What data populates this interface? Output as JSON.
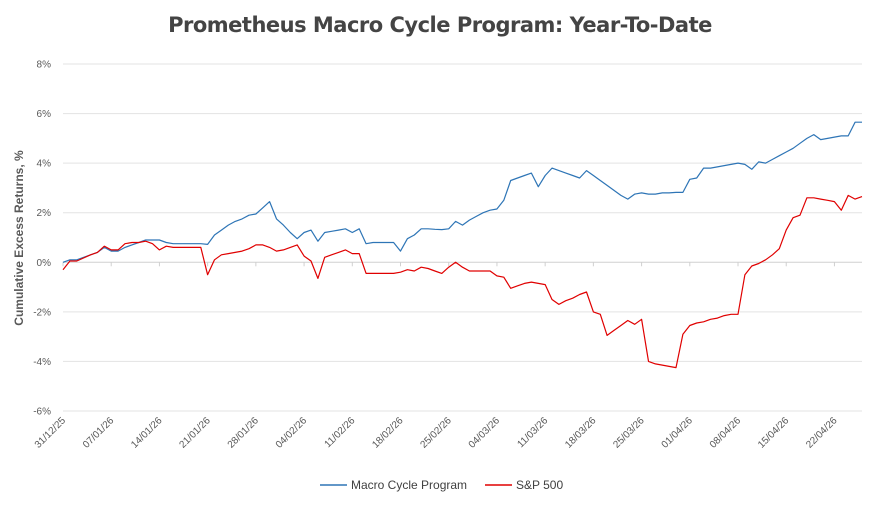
{
  "chart_data": {
    "type": "line",
    "title": "Prometheus Macro Cycle Program: Year-To-Date",
    "xlabel": "",
    "ylabel": "Cumulative Excess Returns, %",
    "ylim": [
      -6,
      8
    ],
    "yticks": [
      8,
      6,
      4,
      2,
      0,
      -2,
      -4,
      -6
    ],
    "ytick_labels": [
      "8%",
      "6%",
      "4%",
      "2%",
      "0%",
      "-2%",
      "-4%",
      "-6%"
    ],
    "xtick_labels": [
      "31/12/25",
      "07/01/26",
      "14/01/26",
      "21/01/26",
      "28/01/26",
      "04/02/26",
      "11/02/26",
      "18/02/26",
      "25/02/26",
      "04/03/26",
      "11/03/26",
      "18/03/26",
      "25/03/26",
      "01/04/26",
      "08/04/26",
      "15/04/26",
      "22/04/26"
    ],
    "xtick_days": [
      0,
      7,
      14,
      21,
      28,
      35,
      42,
      49,
      56,
      63,
      70,
      77,
      84,
      91,
      98,
      105,
      112
    ],
    "x_range_days": [
      0,
      116
    ],
    "grid": true,
    "legend_position": "bottom",
    "series": [
      {
        "name": "Macro Cycle Program",
        "color": "#2e75b6",
        "x": [
          0,
          1,
          2,
          4,
          5,
          6,
          7,
          8,
          9,
          10,
          11,
          12,
          13,
          14,
          15,
          16,
          17,
          18,
          19,
          20,
          21,
          22,
          23,
          24,
          25,
          26,
          27,
          28,
          29,
          30,
          31,
          32,
          33,
          34,
          35,
          36,
          37,
          38,
          39,
          40,
          41,
          42,
          43,
          44,
          45,
          46,
          47,
          48,
          49,
          50,
          51,
          52,
          53,
          54,
          55,
          56,
          57,
          58,
          59,
          60,
          61,
          62,
          63,
          64,
          65,
          66,
          67,
          68,
          69,
          70,
          71,
          72,
          73,
          74,
          75,
          76,
          77,
          78,
          79,
          80,
          81,
          82,
          83,
          84,
          85,
          86,
          87,
          88,
          89,
          90,
          91,
          92,
          93,
          94,
          95,
          96,
          97,
          98,
          99,
          100,
          101,
          102,
          103,
          104,
          105,
          106,
          107,
          108,
          109,
          110,
          111,
          112,
          113,
          114,
          115,
          116
        ],
        "values": [
          0.0,
          0.1,
          0.1,
          0.3,
          0.4,
          0.6,
          0.45,
          0.45,
          0.6,
          0.7,
          0.8,
          0.9,
          0.9,
          0.9,
          0.8,
          0.75,
          0.75,
          0.75,
          0.75,
          0.75,
          0.72,
          1.1,
          1.3,
          1.5,
          1.65,
          1.75,
          1.9,
          1.95,
          2.2,
          2.45,
          1.75,
          1.5,
          1.2,
          0.95,
          1.2,
          1.3,
          0.85,
          1.2,
          1.25,
          1.3,
          1.35,
          1.2,
          1.35,
          0.75,
          0.8,
          0.8,
          0.8,
          0.8,
          0.45,
          0.95,
          1.1,
          1.35,
          1.35,
          1.33,
          1.32,
          1.35,
          1.65,
          1.5,
          1.7,
          1.85,
          2.0,
          2.1,
          2.15,
          2.5,
          3.3,
          3.4,
          3.5,
          3.6,
          3.05,
          3.5,
          3.8,
          3.7,
          3.6,
          3.5,
          3.4,
          3.7,
          3.5,
          3.3,
          3.1,
          2.9,
          2.7,
          2.55,
          2.75,
          2.8,
          2.75,
          2.75,
          2.8,
          2.8,
          2.82,
          2.82,
          3.35,
          3.4,
          3.8,
          3.8,
          3.85,
          3.9,
          3.95,
          4.0,
          3.95,
          3.75,
          4.05,
          4.0,
          4.15,
          4.3,
          4.45,
          4.6,
          4.8,
          5.0,
          5.15,
          4.95,
          5.0,
          5.05,
          5.1,
          5.1,
          5.65,
          5.65
        ],
        "x_offsets": [
          0,
          0,
          0,
          0,
          0,
          0,
          0,
          0,
          0,
          0,
          0,
          0,
          0,
          0,
          0,
          0,
          0,
          0,
          0,
          0,
          0,
          0,
          0,
          0,
          0,
          0,
          0,
          0,
          0,
          0,
          0,
          0,
          0,
          0,
          0,
          0,
          0,
          0,
          0,
          0,
          0,
          0,
          0,
          0,
          0,
          0,
          0,
          0,
          0,
          0,
          0,
          0,
          0,
          0,
          0,
          0,
          0,
          0,
          0,
          0,
          0,
          0,
          0,
          0,
          0,
          0,
          0,
          0,
          0,
          0,
          0,
          0,
          0,
          0,
          0,
          0,
          0,
          0,
          0,
          0,
          0,
          0,
          0,
          0,
          0,
          0,
          0,
          0,
          0,
          0,
          0,
          0,
          0,
          0,
          0,
          0,
          0,
          0,
          0,
          0,
          0,
          0,
          0,
          0,
          0,
          0,
          0,
          0,
          0,
          0,
          0,
          0,
          0,
          0,
          0,
          0
        ]
      },
      {
        "name": "S&P 500",
        "color": "#e00000",
        "x": [
          0,
          1,
          2,
          4,
          5,
          6,
          7,
          8,
          9,
          10,
          11,
          12,
          13,
          14,
          15,
          16,
          17,
          18,
          19,
          20,
          21,
          22,
          23,
          24,
          25,
          26,
          27,
          28,
          29,
          30,
          31,
          32,
          33,
          34,
          35,
          36,
          37,
          38,
          39,
          40,
          41,
          42,
          43,
          44,
          45,
          46,
          47,
          48,
          49,
          50,
          51,
          52,
          53,
          54,
          55,
          56,
          57,
          58,
          59,
          60,
          61,
          62,
          63,
          64,
          65,
          66,
          67,
          68,
          69,
          70,
          71,
          72,
          73,
          74,
          75,
          76,
          77,
          78,
          79,
          80,
          81,
          82,
          83,
          84,
          85,
          86,
          87,
          88,
          89,
          90,
          91,
          92,
          93,
          94,
          95,
          96,
          97,
          98,
          99,
          100,
          101,
          102,
          103,
          104,
          105,
          106,
          107,
          108,
          109,
          110,
          111,
          112,
          113,
          114,
          115,
          116
        ],
        "values": [
          -0.3,
          0.05,
          0.05,
          0.3,
          0.4,
          0.65,
          0.5,
          0.5,
          0.75,
          0.8,
          0.8,
          0.85,
          0.75,
          0.5,
          0.65,
          0.6,
          0.6,
          0.6,
          0.6,
          0.6,
          -0.5,
          0.1,
          0.3,
          0.35,
          0.4,
          0.45,
          0.55,
          0.7,
          0.7,
          0.6,
          0.45,
          0.5,
          0.6,
          0.7,
          0.25,
          0.05,
          -0.65,
          0.2,
          0.3,
          0.4,
          0.5,
          0.35,
          0.35,
          -0.45,
          -0.45,
          -0.45,
          -0.45,
          -0.45,
          -0.4,
          -0.3,
          -0.35,
          -0.2,
          -0.25,
          -0.35,
          -0.45,
          -0.2,
          0.0,
          -0.2,
          -0.35,
          -0.35,
          -0.35,
          -0.35,
          -0.55,
          -0.6,
          -1.05,
          -0.95,
          -0.85,
          -0.8,
          -0.85,
          -0.9,
          -1.5,
          -1.7,
          -1.55,
          -1.45,
          -1.3,
          -1.2,
          -2.0,
          -2.1,
          -2.95,
          -2.75,
          -2.55,
          -2.35,
          -2.5,
          -2.3,
          -4.0,
          -4.1,
          -4.15,
          -4.2,
          -4.25,
          -2.9,
          -2.55,
          -2.45,
          -2.4,
          -2.3,
          -2.25,
          -2.15,
          -2.1,
          -2.1,
          -0.5,
          -0.15,
          -0.05,
          0.1,
          0.3,
          0.55,
          1.3,
          1.8,
          1.9,
          2.6,
          2.6,
          2.55,
          2.5,
          2.45,
          2.1,
          2.7,
          2.55,
          2.65
        ],
        "x_offsets": [
          0,
          0,
          0,
          0,
          0,
          0,
          0,
          0,
          0,
          0,
          0,
          0,
          0,
          0,
          0,
          0,
          0,
          0,
          0,
          0,
          0,
          0,
          0,
          0,
          0,
          0,
          0,
          0,
          0,
          0,
          0,
          0,
          0,
          0,
          0,
          0,
          0,
          0,
          0,
          0,
          0,
          0,
          0,
          0,
          0,
          0,
          0,
          0,
          0,
          0,
          0,
          0,
          0,
          0,
          0,
          0,
          0,
          0,
          0,
          0,
          0,
          0,
          0,
          0,
          0,
          0,
          0,
          0,
          0,
          0,
          0,
          0,
          0,
          0,
          0,
          0,
          0,
          0,
          0,
          0,
          0,
          0,
          0,
          0,
          0,
          0,
          0,
          0,
          0,
          0,
          0,
          0,
          0,
          0,
          0,
          0,
          0,
          0,
          0,
          0,
          0,
          0,
          0,
          0,
          0,
          0,
          0,
          0,
          0,
          0,
          0,
          0,
          0,
          0,
          0,
          0
        ]
      }
    ]
  }
}
